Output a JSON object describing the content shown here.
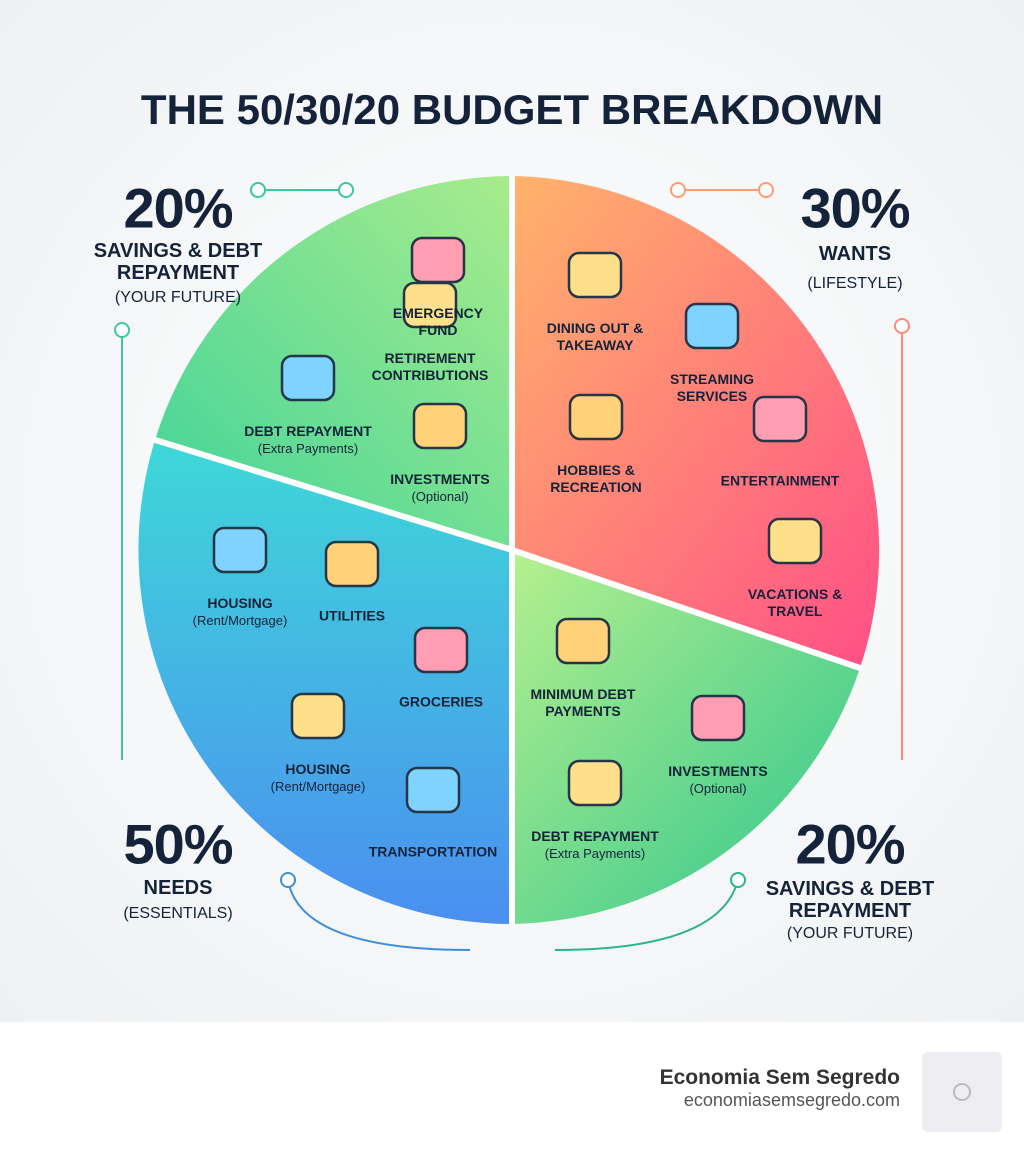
{
  "title": "THE 50/30/20 BUDGET BREAKDOWN",
  "corners": [
    {
      "percent": "20%",
      "label": "SAVINGS & DEBT REPAYMENT",
      "note": "(YOUR FUTURE)"
    },
    {
      "percent": "30%",
      "label": "WANTS",
      "note": "(LIFESTYLE)"
    },
    {
      "percent": "50%",
      "label": "NEEDS",
      "note": "(ESSENTIALS)"
    },
    {
      "percent": "20%",
      "label": "SAVINGS & DEBT REPAYMENT",
      "note": "(YOUR FUTURE)"
    }
  ],
  "slices": [
    {
      "items": [
        {
          "label": "EMERGENCY FUND"
        },
        {
          "label": "RETIREMENT CONTRIBUTIONS"
        },
        {
          "label": "DEBT REPAYMENT",
          "note": "(Extra Payments)"
        },
        {
          "label": "INVESTMENTS",
          "note": "(Optional)"
        }
      ]
    },
    {
      "items": [
        {
          "label": "DINING OUT & TAKEAWAY"
        },
        {
          "label": "STREAMING SERVICES"
        },
        {
          "label": "HOBBIES & RECREATION"
        },
        {
          "label": "ENTERTAINMENT"
        },
        {
          "label": "VACATIONS & TRAVEL"
        }
      ]
    },
    {
      "items": [
        {
          "label": "HOUSING",
          "note": "(Rent/Mortgage)"
        },
        {
          "label": "UTILITIES"
        },
        {
          "label": "GROCERIES"
        },
        {
          "label": "HOUSING",
          "note": "(Rent/Mortgage)"
        },
        {
          "label": "TRANSPORTATION"
        }
      ]
    },
    {
      "items": [
        {
          "label": "MINIMUM DEBT PAYMENTS"
        },
        {
          "label": "INVESTMENTS",
          "note": "(Optional)"
        },
        {
          "label": "DEBT REPAYMENT",
          "note": "(Extra Payments)"
        }
      ]
    }
  ],
  "footer": {
    "brand": "Economia Sem Segredo",
    "url": "economiasemsegredo.com"
  }
}
